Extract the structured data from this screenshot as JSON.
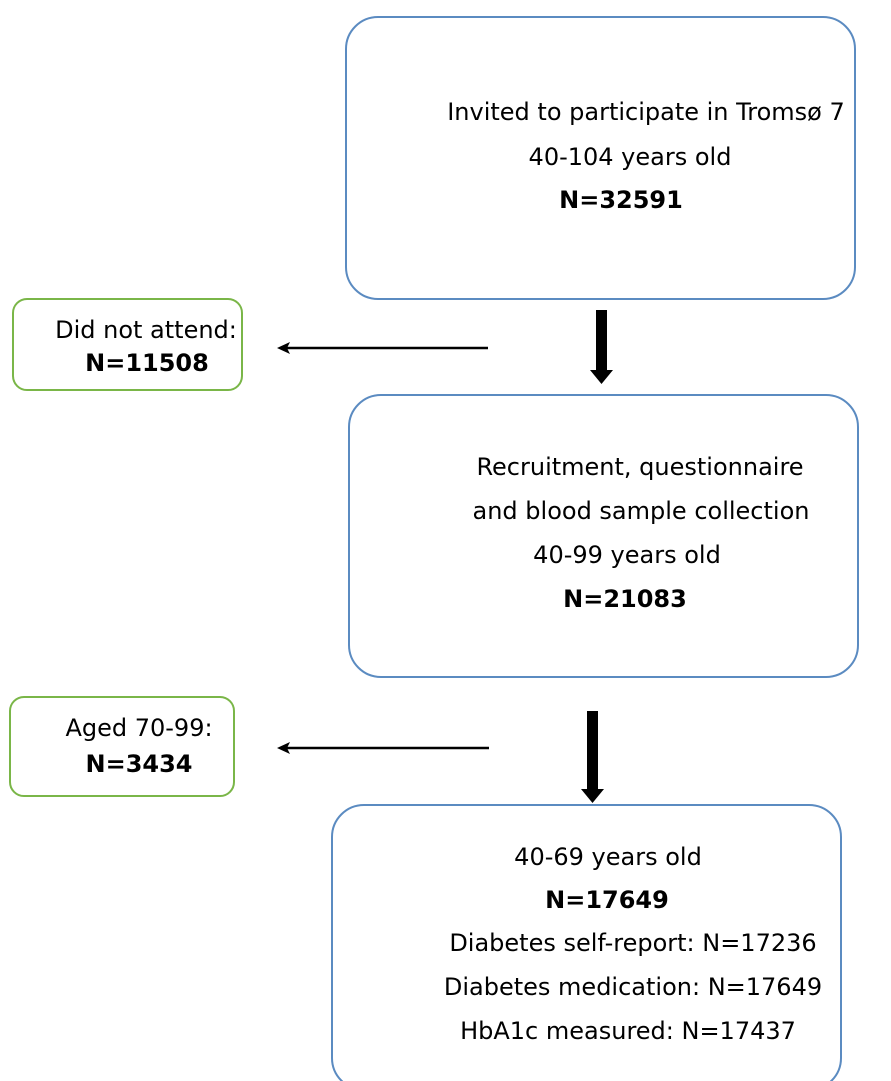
{
  "nodes": [
    {
      "lines": [
        "Invited to participate in Tromsø 7",
        "40-104 years old"
      ],
      "count": "N=32591"
    },
    {
      "lines": [
        "Recruitment, questionnaire",
        "and blood sample collection",
        "40-99 years old"
      ],
      "count": "N=21083"
    },
    {
      "lines": [
        "40-69 years old"
      ],
      "count": "N=17649",
      "details": [
        "Diabetes self-report: N=17236",
        "Diabetes medication: N=17649",
        "HbA1c measured: N=17437"
      ]
    }
  ],
  "exclusions": [
    {
      "label": "Did not attend:",
      "count": "N=11508"
    },
    {
      "label": "Aged 70-99:",
      "count": "N=3434"
    }
  ]
}
